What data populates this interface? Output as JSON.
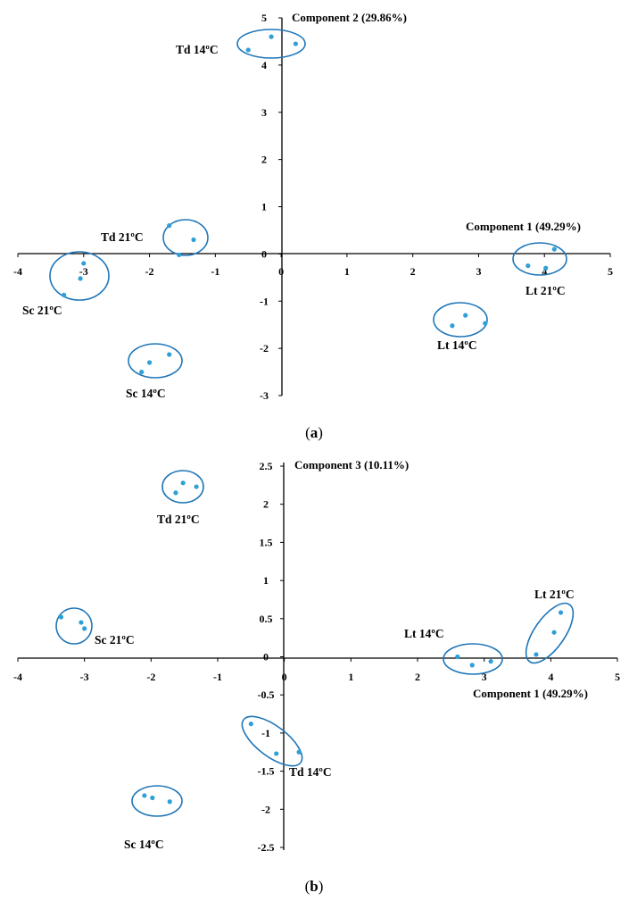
{
  "colors": {
    "marker": "#2e9fd8",
    "ellipse": "#1f76b8",
    "axis": "#000000"
  },
  "chart_data": [
    {
      "type": "scatter",
      "caption_letter": "a",
      "xlabel": "Component 1 (49.29%)",
      "ylabel": "Component 2 (29.86%)",
      "xlim": [
        -4,
        5
      ],
      "ylim": [
        -3,
        5
      ],
      "xticks": [
        "-4",
        "-3",
        "-2",
        "-1",
        "0",
        "1",
        "2",
        "3",
        "4",
        "5"
      ],
      "yticks": [
        "-3",
        "-2",
        "-1",
        "0",
        "1",
        "2",
        "3",
        "4",
        "5"
      ],
      "groups": [
        {
          "label": "Td 14ºC",
          "points": [
            [
              -0.5,
              4.32
            ],
            [
              -0.15,
              4.6
            ],
            [
              0.22,
              4.45
            ]
          ]
        },
        {
          "label": "Td 21ºC",
          "points": [
            [
              -1.7,
              0.6
            ],
            [
              -1.55,
              -0.02
            ],
            [
              -1.33,
              0.3
            ]
          ]
        },
        {
          "label": "Sc 21ºC",
          "points": [
            [
              -3.3,
              -0.87
            ],
            [
              -3.05,
              -0.52
            ],
            [
              -3.0,
              -0.2
            ]
          ]
        },
        {
          "label": "Sc 14ºC",
          "points": [
            [
              -2.12,
              -2.5
            ],
            [
              -2.0,
              -2.3
            ],
            [
              -1.7,
              -2.13
            ]
          ]
        },
        {
          "label": "Lt 21ºC",
          "points": [
            [
              3.75,
              -0.25
            ],
            [
              4.02,
              -0.3
            ],
            [
              4.15,
              0.1
            ]
          ]
        },
        {
          "label": "Lt 14ºC",
          "points": [
            [
              2.6,
              -1.52
            ],
            [
              2.8,
              -1.3
            ],
            [
              3.1,
              -1.47
            ]
          ]
        }
      ]
    },
    {
      "type": "scatter",
      "caption_letter": "b",
      "xlabel": "Component 1 (49.29%)",
      "ylabel": "Component 3 (10.11%)",
      "xlim": [
        -4,
        5
      ],
      "ylim": [
        -2.5,
        2.5
      ],
      "xticks": [
        "-4",
        "-3",
        "-2",
        "-1",
        "0",
        "1",
        "2",
        "3",
        "4",
        "5"
      ],
      "yticks": [
        "-2.5",
        "-2",
        "-1.5",
        "-1",
        "-0.5",
        "0",
        "0.5",
        "1",
        "1.5",
        "2",
        "2.5"
      ],
      "groups": [
        {
          "label": "Td 21ºC",
          "points": [
            [
              -1.63,
              2.15
            ],
            [
              -1.52,
              2.28
            ],
            [
              -1.32,
              2.23
            ]
          ]
        },
        {
          "label": "Sc 21ºC",
          "points": [
            [
              -3.35,
              0.52
            ],
            [
              -3.05,
              0.45
            ],
            [
              -3.0,
              0.37
            ]
          ]
        },
        {
          "label": "Td 14ºC",
          "points": [
            [
              -0.5,
              -0.88
            ],
            [
              -0.12,
              -1.27
            ],
            [
              0.22,
              -1.25
            ]
          ]
        },
        {
          "label": "Sc 14ºC",
          "points": [
            [
              -2.1,
              -1.82
            ],
            [
              -1.98,
              -1.85
            ],
            [
              -1.72,
              -1.9
            ]
          ]
        },
        {
          "label": "Lt 14ºC",
          "points": [
            [
              2.6,
              0.0
            ],
            [
              2.82,
              -0.11
            ],
            [
              3.1,
              -0.06
            ]
          ]
        },
        {
          "label": "Lt 21ºC",
          "points": [
            [
              3.78,
              0.03
            ],
            [
              4.05,
              0.32
            ],
            [
              4.15,
              0.58
            ]
          ]
        }
      ]
    }
  ]
}
